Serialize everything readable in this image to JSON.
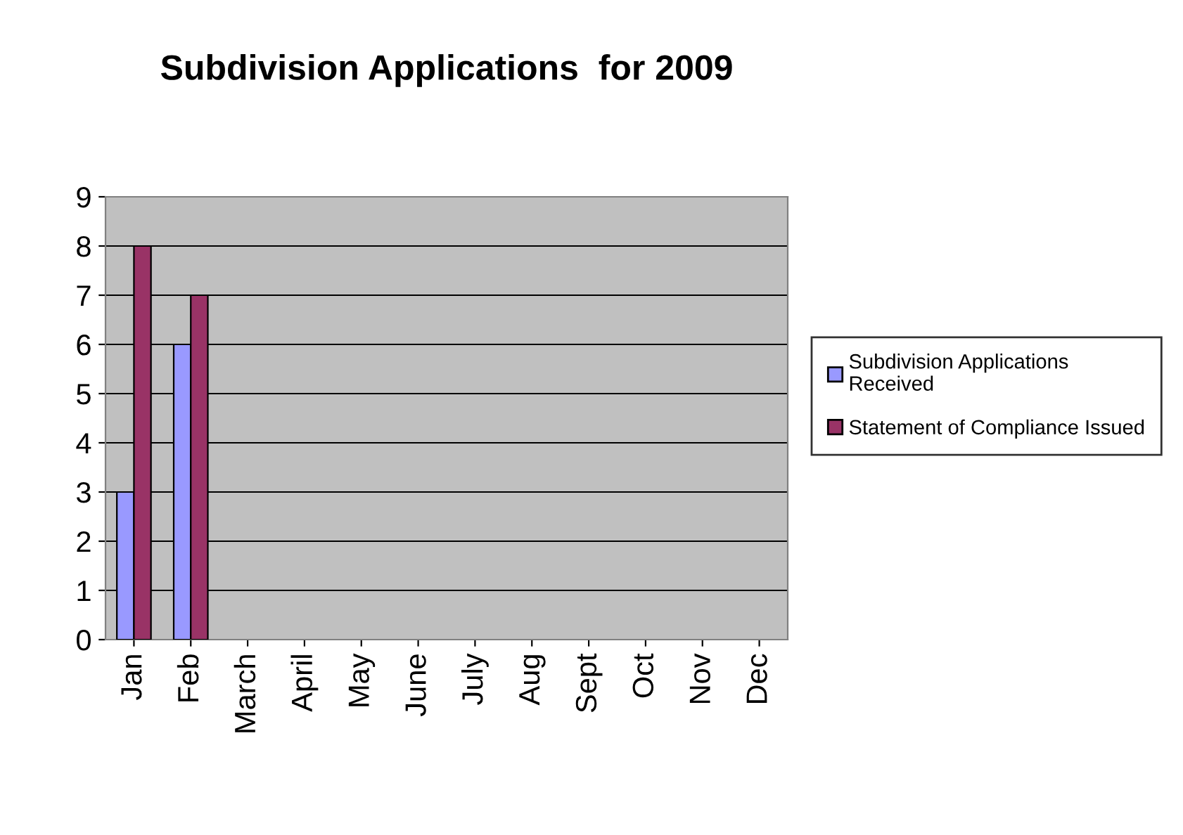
{
  "chart_data": {
    "type": "bar",
    "title": "Subdivision Applications  for 2009",
    "categories": [
      "Jan",
      "Feb",
      "March",
      "April",
      "May",
      "June",
      "July",
      "Aug",
      "Sept",
      "Oct",
      "Nov",
      "Dec"
    ],
    "series": [
      {
        "name": "Subdivision Applications Received",
        "color": "#9999ff",
        "values": [
          3,
          6,
          null,
          null,
          null,
          null,
          null,
          null,
          null,
          null,
          null,
          null
        ]
      },
      {
        "name": "Statement of Compliance Issued",
        "color": "#993366",
        "values": [
          8,
          7,
          null,
          null,
          null,
          null,
          null,
          null,
          null,
          null,
          null,
          null
        ]
      }
    ],
    "ylim": [
      0,
      9
    ],
    "yticks": [
      0,
      1,
      2,
      3,
      4,
      5,
      6,
      7,
      8,
      9
    ],
    "grid": "y",
    "legend": "right"
  }
}
